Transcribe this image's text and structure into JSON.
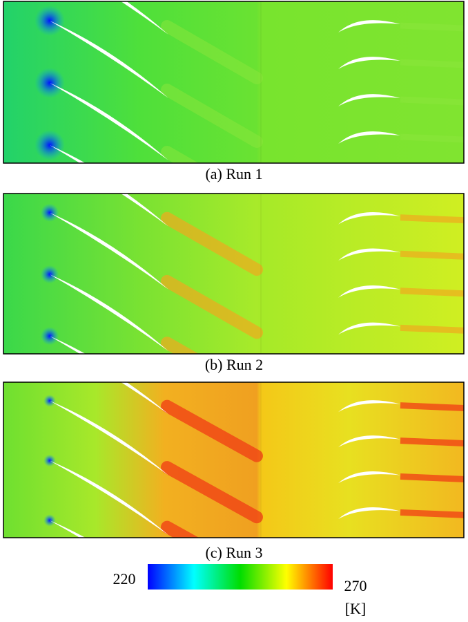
{
  "figure": {
    "panels": [
      {
        "caption": "(a) Run 1"
      },
      {
        "caption": "(b) Run 2"
      },
      {
        "caption": "(c) Run 3"
      }
    ],
    "colorbar": {
      "min": 220,
      "max": 270,
      "unit": "[K]"
    }
  }
}
